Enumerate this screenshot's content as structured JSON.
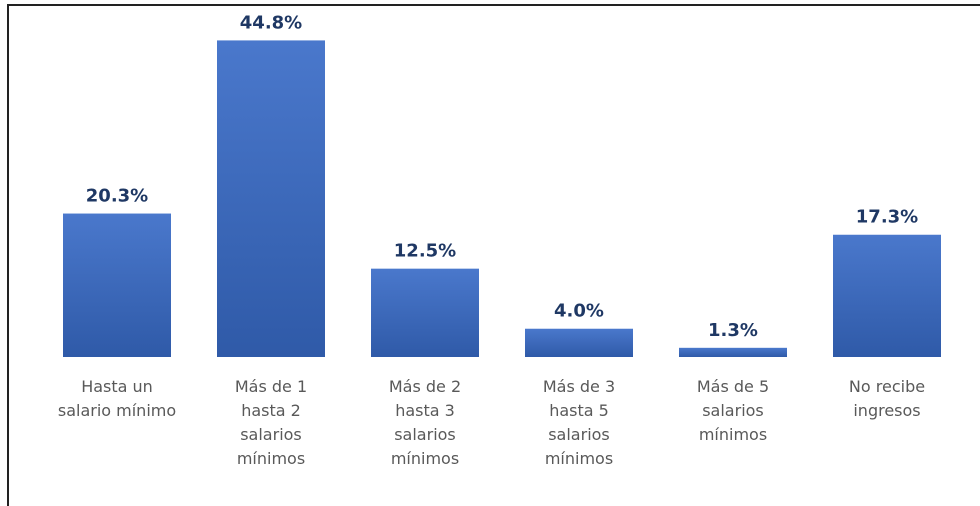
{
  "chart_data": {
    "type": "bar",
    "categories": [
      "Hasta un salario mínimo",
      "Más de 1 hasta 2 salarios mínimos",
      "Más de 2 hasta 3 salarios mínimos",
      "Más de 3 hasta 5 salarios mínimos",
      "Más de 5 salarios mínimos",
      "No recibe ingresos"
    ],
    "values": [
      20.3,
      44.8,
      12.5,
      4.0,
      1.3,
      17.3
    ],
    "value_labels": [
      "20.3%",
      "44.8%",
      "12.5%",
      "4.0%",
      "1.3%",
      "17.3%"
    ],
    "color": "#3a64b8",
    "ylim": [
      0,
      45
    ]
  }
}
